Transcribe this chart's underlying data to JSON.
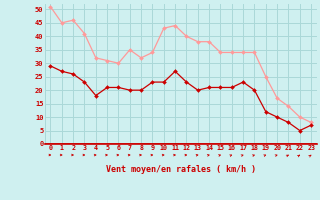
{
  "x": [
    0,
    1,
    2,
    3,
    4,
    5,
    6,
    7,
    8,
    9,
    10,
    11,
    12,
    13,
    14,
    15,
    16,
    17,
    18,
    19,
    20,
    21,
    22,
    23
  ],
  "wind_avg": [
    29,
    27,
    26,
    23,
    18,
    21,
    21,
    20,
    20,
    23,
    23,
    27,
    23,
    20,
    21,
    21,
    21,
    23,
    20,
    12,
    10,
    8,
    5,
    7
  ],
  "wind_gust": [
    51,
    45,
    46,
    41,
    32,
    31,
    30,
    35,
    32,
    34,
    43,
    44,
    40,
    38,
    38,
    34,
    34,
    34,
    34,
    25,
    17,
    14,
    10,
    8
  ],
  "wind_dirs": [
    0,
    0,
    0,
    5,
    5,
    5,
    5,
    5,
    5,
    5,
    5,
    5,
    5,
    10,
    15,
    20,
    25,
    25,
    25,
    25,
    25,
    30,
    35,
    40
  ],
  "bg_color": "#cff0f0",
  "grid_color": "#aad8d8",
  "line_avg_color": "#cc0000",
  "line_gust_color": "#ff9999",
  "xlabel": "Vent moyen/en rafales ( km/h )",
  "xlabel_color": "#cc0000",
  "ylabel_color": "#cc0000",
  "yticks": [
    0,
    5,
    10,
    15,
    20,
    25,
    30,
    35,
    40,
    45,
    50
  ],
  "ylim": [
    0,
    52
  ],
  "xlim": [
    -0.5,
    23.5
  ]
}
